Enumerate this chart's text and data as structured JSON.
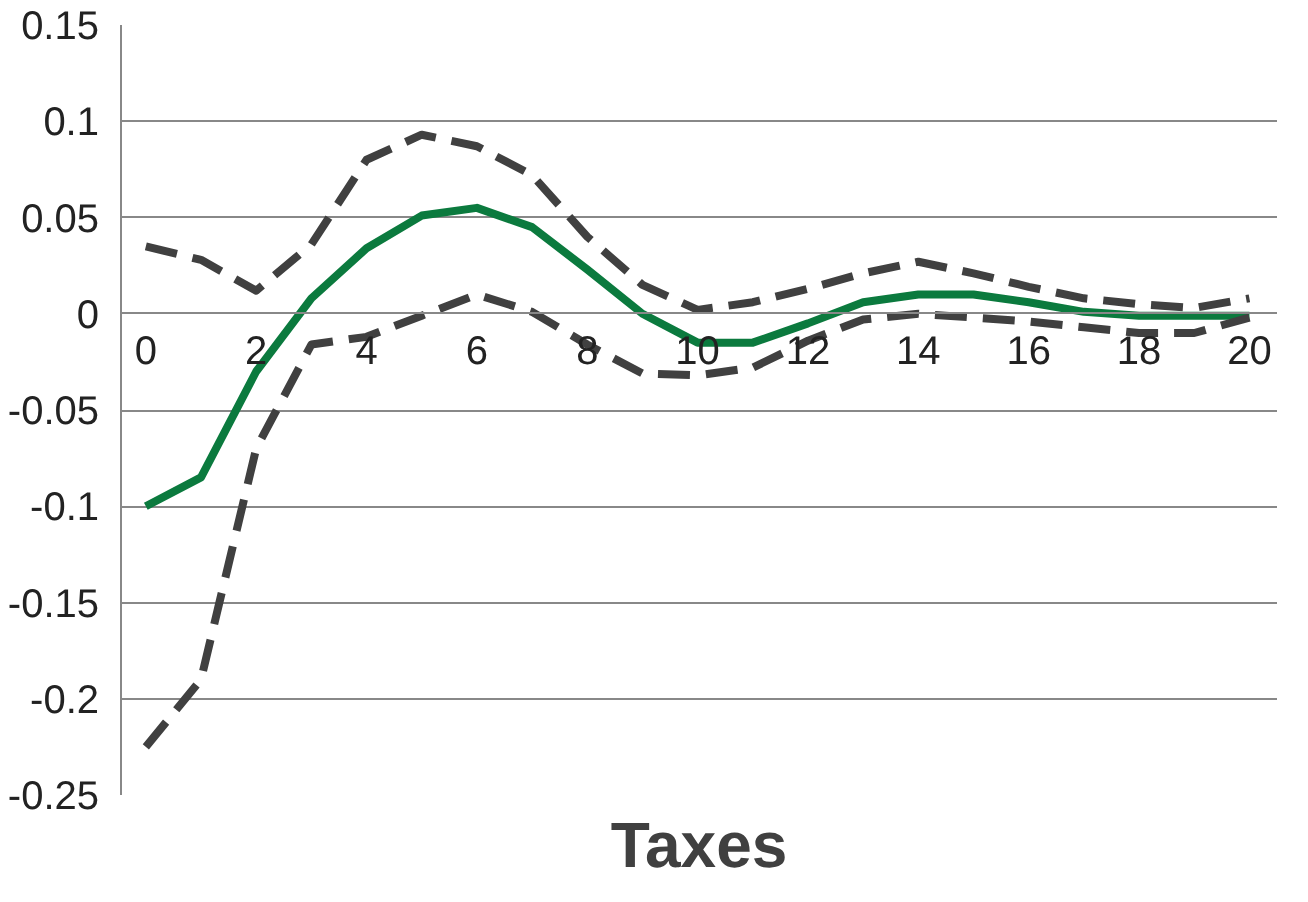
{
  "chart_data": {
    "type": "line",
    "xlabel": "Taxes",
    "x": [
      0,
      1,
      2,
      3,
      4,
      5,
      6,
      7,
      8,
      9,
      10,
      11,
      12,
      13,
      14,
      15,
      16,
      17,
      18,
      19,
      20
    ],
    "series": [
      {
        "color": "#0b7a3e",
        "line_style": "solid",
        "values": [
          -0.1,
          -0.085,
          -0.03,
          0.008,
          0.034,
          0.051,
          0.055,
          0.045,
          0.023,
          0,
          -0.015,
          -0.015,
          -0.005,
          0.006,
          0.01,
          0.01,
          0.006,
          0.001,
          -0.001,
          -0.001,
          -0.001
        ]
      },
      {
        "color": "#404040",
        "line_style": "dashed",
        "values": [
          0.035,
          0.028,
          0.012,
          0.036,
          0.08,
          0.093,
          0.087,
          0.072,
          0.04,
          0.015,
          0.002,
          0.006,
          0.013,
          0.021,
          0.027,
          0.021,
          0.014,
          0.008,
          0.005,
          0.003,
          0.008
        ]
      },
      {
        "color": "#404040",
        "line_style": "dashed",
        "values": [
          -0.225,
          -0.19,
          -0.07,
          -0.016,
          -0.012,
          -0.001,
          0.01,
          0.001,
          -0.016,
          -0.031,
          -0.032,
          -0.028,
          -0.014,
          -0.003,
          0,
          -0.002,
          -0.004,
          -0.007,
          -0.01,
          -0.01,
          -0.002
        ]
      }
    ],
    "xlim": [
      -0.45,
      20.5
    ],
    "ylim": [
      -0.25,
      0.15
    ],
    "xticks": [
      0,
      2,
      4,
      6,
      8,
      10,
      12,
      14,
      16,
      18,
      20
    ],
    "yticks": [
      -0.25,
      -0.2,
      -0.15,
      -0.1,
      -0.05,
      0,
      0.05,
      0.1,
      0.15
    ],
    "grid": "y",
    "marker": "none"
  }
}
